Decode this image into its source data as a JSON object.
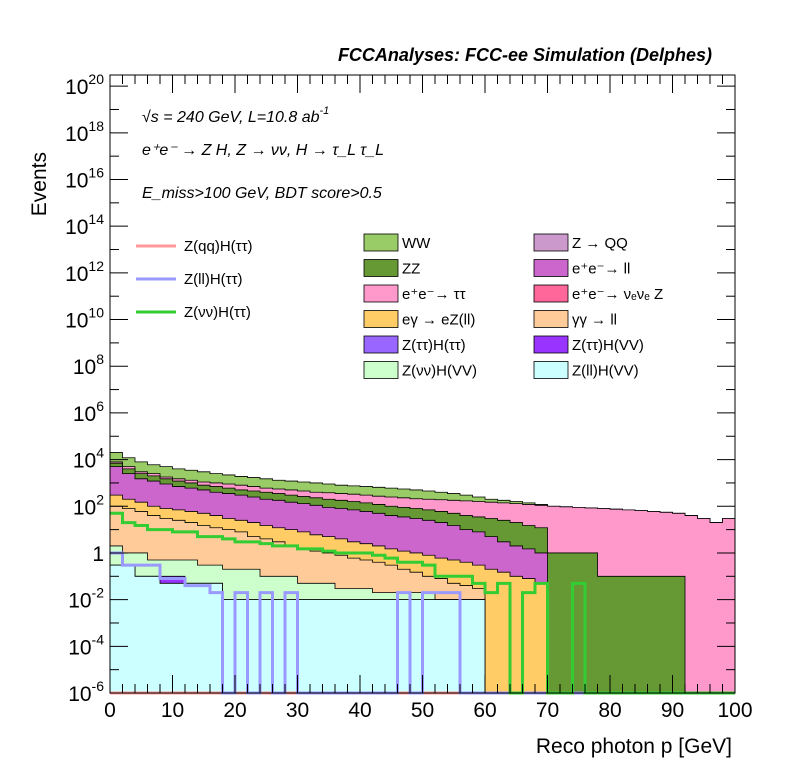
{
  "chart_data": {
    "type": "histogram-stacked-log",
    "title": "FCCAnalyses: FCC-ee Simulation (Delphes)",
    "annotations": {
      "energy": "√s = 240 GeV, L=10.8 ab",
      "energy_exp": "-1",
      "process": "e⁺e⁻ → Z H, Z → νν, H → τ_L τ_L",
      "selection": "E_miss>100 GeV, BDT score>0.5"
    },
    "xlabel": "Reco photon p [GeV]",
    "ylabel": "Events",
    "xlim": [
      0,
      100
    ],
    "ylim": [
      1e-06,
      3e+20
    ],
    "yscale": "log",
    "bin_width": 2,
    "xticks": [
      "0",
      "10",
      "20",
      "30",
      "40",
      "50",
      "60",
      "70",
      "80",
      "90",
      "100"
    ],
    "yticks": [
      {
        "base": "10",
        "exp": "-6",
        "value": 1e-06
      },
      {
        "base": "10",
        "exp": "-4",
        "value": 0.0001
      },
      {
        "base": "10",
        "exp": "-2",
        "value": 0.01
      },
      {
        "base": "1",
        "exp": "",
        "value": 1
      },
      {
        "base": "10",
        "exp": "2",
        "value": 100.0
      },
      {
        "base": "10",
        "exp": "4",
        "value": 10000.0
      },
      {
        "base": "10",
        "exp": "6",
        "value": 1000000.0
      },
      {
        "base": "10",
        "exp": "8",
        "value": 100000000.0
      },
      {
        "base": "10",
        "exp": "10",
        "value": 10000000000.0
      },
      {
        "base": "10",
        "exp": "12",
        "value": 1000000000000.0
      },
      {
        "base": "10",
        "exp": "14",
        "value": 100000000000000.0
      },
      {
        "base": "10",
        "exp": "16",
        "value": 1e+16
      },
      {
        "base": "10",
        "exp": "18",
        "value": 1e+18
      },
      {
        "base": "10",
        "exp": "20",
        "value": 1e+20
      }
    ],
    "stack_levels": [
      {
        "name": "Z(ll)H(VV)",
        "color": "#ccffff",
        "values": [
          0.3,
          0.3,
          0.1,
          0.1,
          0.05,
          0.05,
          0.05,
          0.05,
          0.05,
          0.01,
          0.01,
          0.01,
          0.01,
          0.01,
          0.01,
          0.01,
          0.01,
          0.01,
          0.01,
          0.01,
          0.01,
          0.01,
          0.01,
          0.01,
          0.01,
          0.01,
          0.01,
          0.01,
          0.01,
          0.01,
          0,
          0,
          0,
          0,
          0,
          0,
          0,
          0,
          0,
          0,
          0,
          0,
          0,
          0,
          0,
          0,
          0,
          0,
          0,
          0
        ]
      },
      {
        "name": "Z(ττ)H(VV)",
        "color": "#9933ff",
        "values": [
          0.3,
          0.3,
          0.1,
          0.1,
          0.1,
          0.1,
          0.05,
          0.05,
          0.05,
          0.01,
          0.01,
          0.01,
          0.01,
          0.01,
          0.01,
          0.01,
          0.01,
          0.01,
          0.01,
          0.01,
          0.01,
          0.01,
          0.01,
          0.01,
          0.01,
          0.01,
          0.01,
          0.01,
          0.01,
          0.01,
          0,
          0,
          0,
          0,
          0,
          0,
          0,
          0,
          0,
          0,
          0,
          0,
          0,
          0,
          0,
          0,
          0,
          0,
          0,
          0
        ]
      },
      {
        "name": "Z(νν)H(VV)",
        "color": "#ccffcc",
        "values": [
          2,
          1,
          1,
          0.5,
          0.5,
          0.5,
          0.5,
          0.3,
          0.3,
          0.2,
          0.2,
          0.2,
          0.1,
          0.1,
          0.1,
          0.05,
          0.05,
          0.05,
          0.03,
          0.03,
          0.03,
          0.02,
          0.02,
          0.02,
          0.02,
          0.02,
          0.01,
          0.01,
          0.01,
          0.01,
          0,
          0,
          0,
          0,
          0,
          0,
          0,
          0,
          0,
          0,
          0,
          0,
          0,
          0,
          0,
          0,
          0,
          0,
          0,
          0
        ]
      },
      {
        "name": "γγ → ll",
        "color": "#ffcc99",
        "values": [
          100,
          80,
          60,
          40,
          30,
          25,
          20,
          15,
          12,
          10,
          8,
          5,
          4,
          3,
          2,
          1.5,
          1.2,
          1,
          0.8,
          0.6,
          0.5,
          0.4,
          0.3,
          0.2,
          0.15,
          0.1,
          0.08,
          0.05,
          0.04,
          0.03,
          0,
          0,
          0,
          0,
          0,
          0,
          0,
          0,
          0,
          0,
          0,
          0,
          0,
          0,
          0,
          0,
          0,
          0,
          0,
          0
        ]
      },
      {
        "name": "eγ → eZ(ll)",
        "color": "#ffcc66",
        "values": [
          300,
          200,
          150,
          100,
          80,
          70,
          60,
          50,
          40,
          30,
          25,
          20,
          15,
          12,
          10,
          8,
          6,
          5,
          4,
          3,
          2.5,
          2,
          1.5,
          1.2,
          1,
          0.8,
          0.6,
          0.5,
          0.4,
          0.3,
          0.2,
          0.15,
          0.1,
          0.08,
          0.05,
          0,
          0,
          0,
          0,
          0,
          0,
          0,
          0,
          0,
          0,
          0,
          0,
          0,
          0,
          0
        ]
      },
      {
        "name": "e⁺e⁻→ ll",
        "color": "#cc66cc",
        "values": [
          5000,
          2500,
          1500,
          1200,
          900,
          700,
          600,
          500,
          400,
          350,
          300,
          250,
          200,
          180,
          150,
          130,
          110,
          90,
          80,
          70,
          60,
          50,
          40,
          35,
          30,
          25,
          20,
          15,
          10,
          8,
          5,
          3,
          2,
          1.5,
          1,
          0,
          0,
          0,
          0,
          0,
          0,
          0,
          0,
          0,
          0,
          0,
          0,
          0,
          0,
          0
        ]
      },
      {
        "name": "ZZ",
        "color": "#669933",
        "values": [
          7000,
          4000,
          2500,
          2000,
          1500,
          1200,
          1000,
          800,
          700,
          600,
          500,
          450,
          400,
          350,
          300,
          260,
          230,
          200,
          180,
          160,
          140,
          120,
          100,
          90,
          80,
          70,
          60,
          50,
          40,
          35,
          30,
          25,
          20,
          15,
          12,
          1,
          1,
          1,
          1,
          0.1,
          0.1,
          0.1,
          0.1,
          0.1,
          0.1,
          0.1,
          0,
          0,
          0,
          0
        ]
      },
      {
        "name": "e⁺e⁻→ ττ",
        "color": "#ff99cc",
        "values": [
          8000,
          5000,
          3000,
          2500,
          1800,
          1500,
          1300,
          1100,
          1000,
          900,
          800,
          700,
          600,
          550,
          500,
          450,
          400,
          380,
          350,
          330,
          300,
          270,
          250,
          230,
          210,
          200,
          190,
          180,
          170,
          160,
          150,
          140,
          130,
          120,
          110,
          100,
          95,
          90,
          85,
          80,
          75,
          70,
          65,
          60,
          55,
          50,
          40,
          30,
          20,
          30
        ]
      },
      {
        "name": "WW",
        "color": "#99cc66",
        "values": [
          20000,
          12000,
          8000,
          6000,
          5000,
          4000,
          3500,
          3000,
          2500,
          2200,
          1900,
          1700,
          1500,
          1300,
          1200,
          1100,
          1000,
          900,
          800,
          750,
          700,
          650,
          600,
          550,
          500,
          450,
          400,
          350,
          300,
          250,
          200,
          180,
          160,
          140,
          120,
          100,
          95,
          90,
          85,
          80,
          75,
          70,
          65,
          60,
          55,
          50,
          40,
          30,
          20,
          30
        ]
      }
    ],
    "signal_lines": [
      {
        "name": "Z(qq)H(ττ)",
        "color": "#ff9999",
        "values": [
          1e-06,
          1e-06,
          1e-06,
          1e-06,
          1e-06,
          1e-06,
          1e-06,
          1e-06,
          1e-06,
          1e-06,
          1e-06,
          1e-06,
          1e-06,
          1e-06,
          1e-06,
          1e-06,
          1e-06,
          1e-06,
          1e-06,
          1e-06,
          1e-06,
          1e-06,
          1e-06,
          1e-06,
          1e-06,
          1e-06,
          1e-06,
          1e-06,
          1e-06,
          1e-06,
          1e-06,
          1e-06,
          1e-06,
          1e-06,
          1e-06,
          1e-06,
          1e-06,
          1e-06,
          1e-06,
          1e-06,
          1e-06,
          1e-06,
          1e-06,
          1e-06,
          1e-06,
          1e-06,
          1e-06,
          1e-06,
          1e-06,
          1e-06
        ]
      },
      {
        "name": "Z(ll)H(ττ)",
        "color": "#9999ff",
        "values": [
          1,
          0.3,
          0.3,
          0.3,
          0.08,
          0.08,
          0.04,
          0.04,
          0.02,
          1e-06,
          0.02,
          1e-06,
          0.02,
          1e-06,
          0.02,
          1e-06,
          1e-06,
          1e-06,
          1e-06,
          1e-06,
          1e-06,
          1e-06,
          1e-06,
          0.02,
          1e-06,
          0.02,
          0.02,
          0.02,
          1e-06,
          1e-06,
          1e-06,
          1e-06,
          1e-06,
          1e-06,
          1e-06,
          1e-06,
          1e-06,
          1e-06,
          1e-06,
          1e-06,
          1e-06,
          1e-06,
          1e-06,
          1e-06,
          1e-06,
          1e-06,
          1e-06,
          1e-06,
          1e-06,
          1e-06
        ]
      },
      {
        "name": "Z(νν)H(ττ)",
        "color": "#33cc33",
        "values": [
          50,
          20,
          15,
          10,
          10,
          8,
          8,
          5,
          5,
          4,
          3,
          3,
          2.5,
          2,
          2,
          1.5,
          1.5,
          1.2,
          1,
          1,
          1,
          0.8,
          0.6,
          0.4,
          0.4,
          0.3,
          0.1,
          0.1,
          0.1,
          0.05,
          0.02,
          0.05,
          1e-06,
          0.02,
          0.05,
          1e-06,
          1e-06,
          0.05,
          1e-06,
          1e-06,
          1e-06,
          1e-06,
          1e-06,
          1e-06,
          1e-06,
          1e-06,
          1e-06,
          1e-06,
          1e-06,
          1e-06
        ]
      }
    ],
    "legend": {
      "lines": [
        {
          "label": "Z(qq)H(ττ)",
          "color": "#ff9999"
        },
        {
          "label": "Z(ll)H(ττ)",
          "color": "#9999ff"
        },
        {
          "label": "Z(νν)H(ττ)",
          "color": "#33cc33"
        }
      ],
      "boxes_col1": [
        {
          "label": "WW",
          "color": "#99cc66"
        },
        {
          "label": "ZZ",
          "color": "#669933"
        },
        {
          "label": "e⁺e⁻→ ττ",
          "color": "#ff99cc"
        },
        {
          "label": "eγ → eZ(ll)",
          "color": "#ffcc66"
        },
        {
          "label": "Z(ττ)H(ττ)",
          "color": "#9966ff"
        },
        {
          "label": "Z(νν)H(VV)",
          "color": "#ccffcc"
        }
      ],
      "boxes_col2": [
        {
          "label": "Z → QQ",
          "color": "#cc99cc"
        },
        {
          "label": "e⁺e⁻→ ll",
          "color": "#cc66cc"
        },
        {
          "label": "e⁺e⁻→ νₑνₑ Z",
          "color": "#ff6699"
        },
        {
          "label": "γγ → ll",
          "color": "#ffcc99"
        },
        {
          "label": "Z(ττ)H(VV)",
          "color": "#9933ff"
        },
        {
          "label": "Z(ll)H(VV)",
          "color": "#ccffff"
        }
      ]
    }
  }
}
